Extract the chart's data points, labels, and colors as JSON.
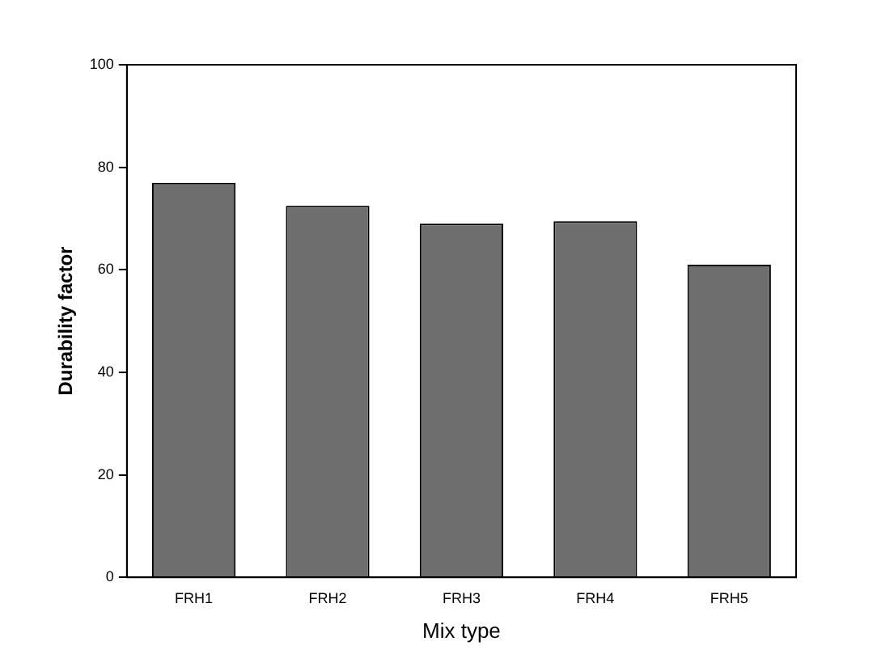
{
  "chart_data": {
    "type": "bar",
    "xlabel": "Mix type",
    "ylabel": "Durability factor",
    "categories": [
      "FRH1",
      "FRH2",
      "FRH3",
      "FRH4",
      "FRH5"
    ],
    "values": [
      77,
      72.5,
      69,
      69.5,
      61
    ],
    "color": "#6e6e6e",
    "ylim": [
      0,
      100
    ],
    "yticks": [
      0,
      20,
      40,
      60,
      80,
      100
    ],
    "grid": false,
    "legend": false
  }
}
